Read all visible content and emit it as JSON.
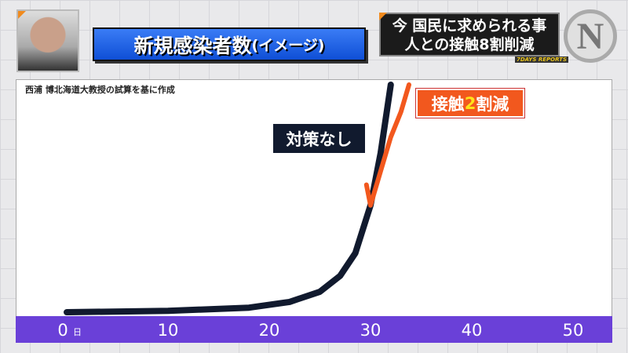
{
  "header": {
    "title": "新規感染者数",
    "title_suffix": "(イメージ)",
    "topic_line1": "今 国民に求められる事",
    "topic_line2": "人との接触8割削減",
    "logo": "N",
    "logo_sub": "7DAYS REPORTS"
  },
  "source_note": "西浦 博北海道大教授の試算を基に作成",
  "chart_data": {
    "type": "line",
    "title": "新規感染者数(イメージ)",
    "xlabel": "",
    "ylabel": "",
    "x_unit": "日",
    "xlim": [
      0,
      52
    ],
    "ylim": [
      0,
      100
    ],
    "x_ticks": [
      "0",
      "10",
      "20",
      "30",
      "40",
      "50"
    ],
    "grid": false,
    "series": [
      {
        "name": "対策なし",
        "color": "#111a2e",
        "points": [
          [
            0,
            0
          ],
          [
            10,
            0.6
          ],
          [
            18,
            2
          ],
          [
            22,
            4.5
          ],
          [
            25,
            9
          ],
          [
            27,
            16
          ],
          [
            28.5,
            26
          ],
          [
            30,
            47
          ],
          [
            31,
            70
          ],
          [
            32,
            100
          ]
        ]
      },
      {
        "name": "接触2割減",
        "name_pre": "接触",
        "name_hl": "2",
        "name_post": "割減",
        "color": "#f2581e",
        "points": [
          [
            29.6,
            56
          ],
          [
            30,
            47
          ],
          [
            31,
            62
          ],
          [
            32,
            77
          ],
          [
            33,
            88
          ],
          [
            33.8,
            100
          ]
        ]
      }
    ]
  }
}
